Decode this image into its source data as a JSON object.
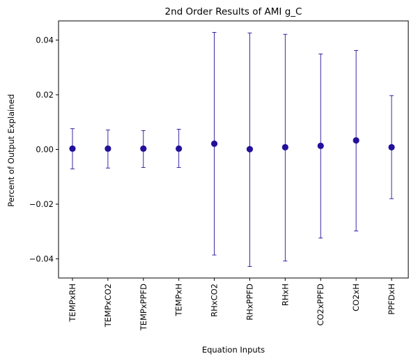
{
  "chart_data": {
    "type": "scatter",
    "title": "2nd Order Results of AMI g_C",
    "xlabel": "Equation Inputs",
    "ylabel": "Percent of Output Explained",
    "categories": [
      "TEMPxRH",
      "TEMPxCO2",
      "TEMPxPPFD",
      "TEMPxH",
      "RHxCO2",
      "RHxPPFD",
      "RHxH",
      "CO2xPPFD",
      "CO2xH",
      "PPFDxH"
    ],
    "series": [
      {
        "values": [
          0.0003,
          0.0003,
          0.0003,
          0.0003,
          0.0021,
          0.0001,
          0.0008,
          0.0013,
          0.0033,
          0.0008
        ],
        "error_low": [
          -0.0071,
          -0.0068,
          -0.0066,
          -0.0066,
          -0.0386,
          -0.0428,
          -0.0408,
          -0.0324,
          -0.0298,
          -0.018
        ],
        "error_high": [
          0.0076,
          0.0071,
          0.0069,
          0.0074,
          0.0428,
          0.0426,
          0.0421,
          0.0349,
          0.0362,
          0.0197
        ]
      }
    ],
    "ylim": [
      -0.047,
      0.047
    ],
    "yticks": [
      -0.04,
      -0.02,
      0.0,
      0.02,
      0.04
    ],
    "ytick_labels": [
      "−0.04",
      "−0.02",
      "0.00",
      "0.02",
      "0.04"
    ],
    "grid": false,
    "colors": {
      "marker": "#23109a",
      "errorbar": "#23109a",
      "axes": "#000000"
    }
  }
}
